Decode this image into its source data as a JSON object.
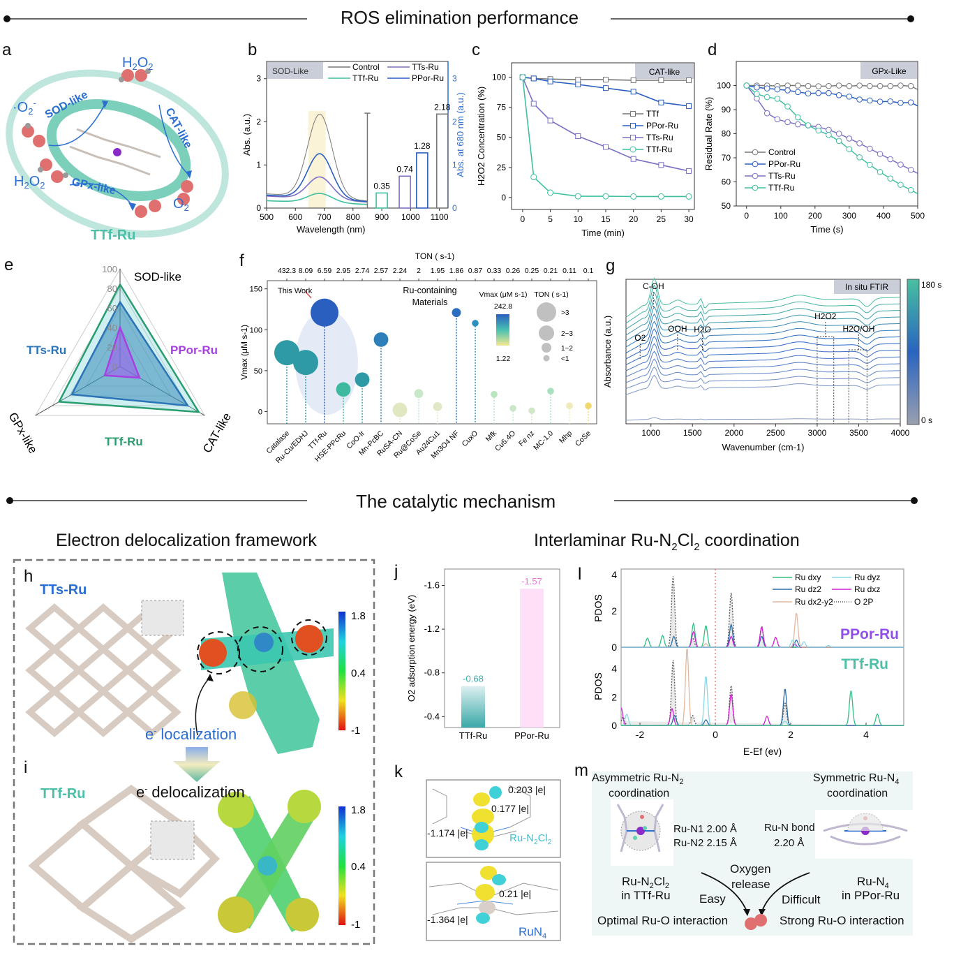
{
  "sections": {
    "top": "ROS elimination performance",
    "bottom": "The catalytic mechanism",
    "left_sub": "Electron delocalization framework",
    "right_sub": "Interlaminar Ru-N2Cl2 coordination"
  },
  "panel_a": {
    "letter": "a",
    "labels": {
      "h2o2_top": "H2O2",
      "o2_radical": "·O2-",
      "h2o2_left": "H2O2",
      "o2": "O2",
      "sod": "SOD-like",
      "cat": "CAT-like",
      "gpx": "GPx-like",
      "name": "TTf-Ru"
    }
  },
  "chart_data": [
    {
      "id": "b",
      "type": "line",
      "title": "SOD-Like",
      "xlabel": "Wavelength (nm)",
      "ylabel": "Abs. (a.u.)",
      "ylabel_right": "Abs. at 680 nm (a.u.)",
      "xlim": [
        500,
        1130
      ],
      "ylim": [
        0,
        3.4
      ],
      "xticks": [
        500,
        600,
        700,
        800,
        900,
        1000,
        1100
      ],
      "yticks": [
        0,
        1,
        2,
        3
      ],
      "series": [
        {
          "name": "Control",
          "color": "#777777",
          "peak": 2.2,
          "base": 0.33
        },
        {
          "name": "TTs-Ru",
          "color": "#7b6fc4",
          "peak": 0.74,
          "base": 0.28
        },
        {
          "name": "TTf-Ru",
          "color": "#3fbf9f",
          "peak": 0.35,
          "base": 0.17
        },
        {
          "name": "PPor-Ru",
          "color": "#2a5fc0",
          "peak": 1.28,
          "base": 0.3
        }
      ],
      "bars": [
        {
          "x": 900,
          "value": 0.35,
          "label": "0.35",
          "color": "#3fbf9f"
        },
        {
          "x": 980,
          "value": 0.74,
          "label": "0.74",
          "color": "#7b6fc4"
        },
        {
          "x": 1040,
          "value": 1.28,
          "label": "1.28",
          "color": "#2a5fc0"
        },
        {
          "x": 1110,
          "value": 2.18,
          "label": "2.18",
          "color": "#777777"
        }
      ]
    },
    {
      "id": "c",
      "type": "line",
      "title": "CAT-like",
      "xlabel": "Time (min)",
      "ylabel": "H2O2 Concentration (%)",
      "xlim": [
        -2,
        31
      ],
      "ylim": [
        -10,
        112
      ],
      "xticks": [
        0,
        5,
        10,
        15,
        20,
        25,
        30
      ],
      "yticks": [
        0,
        25,
        50,
        75,
        100
      ],
      "x": [
        0,
        2,
        5,
        10,
        15,
        20,
        25,
        30
      ],
      "series": [
        {
          "name": "TTf",
          "color": "#777777",
          "marker": "square",
          "values": [
            100,
            99,
            98.5,
            98,
            98,
            97.5,
            97.5,
            97.5
          ]
        },
        {
          "name": "PPor-Ru",
          "color": "#2a5fc0",
          "marker": "square",
          "values": [
            100,
            99,
            96.5,
            94,
            91,
            88,
            79,
            76
          ]
        },
        {
          "name": "TTs-Ru",
          "color": "#7b6fc4",
          "marker": "square",
          "values": [
            100,
            78,
            64,
            51,
            42,
            32,
            27,
            22
          ]
        },
        {
          "name": "TTf-Ru",
          "color": "#3fbf9f",
          "marker": "circle",
          "values": [
            100,
            17,
            4,
            1,
            1,
            0.8,
            0.8,
            0.8
          ]
        }
      ]
    },
    {
      "id": "d",
      "type": "line",
      "title": "GPx-Like",
      "xlabel": "Time (s)",
      "ylabel": "Residual Rate (%)",
      "xlim": [
        -30,
        500
      ],
      "ylim": [
        50,
        110
      ],
      "xticks": [
        0,
        100,
        200,
        300,
        400,
        500
      ],
      "yticks": [
        50,
        60,
        70,
        80,
        90,
        100
      ],
      "x": [
        0,
        30,
        60,
        90,
        120,
        150,
        180,
        210,
        240,
        270,
        300,
        330,
        360,
        390,
        420,
        450,
        480
      ],
      "series": [
        {
          "name": "Control",
          "color": "#777777",
          "values": [
            100,
            100,
            100,
            99.8,
            100,
            100,
            99.8,
            99.7,
            99.8,
            100,
            99.8,
            100,
            99.8,
            99.8,
            99.8,
            100,
            99.8
          ]
        },
        {
          "name": "PPor-Ru",
          "color": "#2a5fc0",
          "values": [
            100,
            99.2,
            98.8,
            98.4,
            98,
            97.3,
            96.7,
            96.9,
            96.9,
            96,
            95.4,
            94.2,
            93.8,
            93.3,
            93.4,
            92.8,
            93
          ]
        },
        {
          "name": "TTs-Ru",
          "color": "#7b6fc4",
          "values": [
            100,
            94.6,
            88.5,
            86,
            84.8,
            83.9,
            83.4,
            82.8,
            81.6,
            80,
            78,
            76,
            73.8,
            71.6,
            69.4,
            67.2,
            65
          ]
        },
        {
          "name": "TTf-Ru",
          "color": "#3fbf9f",
          "values": [
            100,
            96.5,
            95.2,
            94.5,
            91.3,
            86.8,
            83.5,
            81.3,
            79.5,
            77,
            73.6,
            70.2,
            67.1,
            64.1,
            61.4,
            58.8,
            56.6
          ]
        }
      ]
    },
    {
      "id": "e",
      "type": "radar",
      "axes": [
        "SOD-like",
        "CAT-like",
        "GPx-like"
      ],
      "ticks": [
        "0",
        "20",
        "40",
        "60",
        "80",
        "100"
      ],
      "series": [
        {
          "name": "TTf-Ru",
          "color": "#2a9d6f",
          "values": [
            84,
            93,
            72
          ]
        },
        {
          "name": "TTs-Ru",
          "color": "#2a74b8",
          "values": [
            66,
            80,
            57
          ]
        },
        {
          "name": "PPor-Ru",
          "color": "#a740e0",
          "values": [
            40,
            23,
            18
          ]
        }
      ]
    },
    {
      "id": "f",
      "type": "scatter",
      "xlabel_top": "TON ( s-1)",
      "ylabel": "Vmax (μM s-1)",
      "ylim": [
        -15,
        160
      ],
      "yticks": [
        0,
        50,
        100,
        150
      ],
      "annotations": [
        "This Work",
        "Ru-containing",
        "Materials"
      ],
      "colorbar": {
        "label": "Vmax (μM s-1)",
        "max": "242.8",
        "min": "1.22"
      },
      "size_legend": {
        "title": "TON ( s-1)",
        "items": [
          ">3",
          "2~3",
          "1~2",
          "<1"
        ]
      },
      "categories": [
        "Catalase",
        "Ru-Cu/EDHJ",
        "TTf-Ru",
        "HSE-PPcRu",
        "CoO-Ir",
        "Mn-PcBC",
        "RuSA-CN",
        "Ru@CoSe",
        "Au24Cu1",
        "Mn3O4 NF",
        "CuxO",
        "Mfk",
        "Cu5.4O",
        "Fe nz",
        "MC-1.0",
        "Mhp",
        "CoSe"
      ],
      "ton": [
        "432.3",
        "8.09",
        "6.59",
        "2.95",
        "2.74",
        "2.57",
        "2.24",
        "2",
        "1.95",
        "1.86",
        "0.87",
        "0.33",
        "0.26",
        "0.25",
        "0.21",
        "0.11",
        "0.1"
      ],
      "values": [
        72,
        60,
        121,
        27,
        39,
        88,
        2,
        22,
        6,
        121,
        108,
        21,
        4,
        1,
        25,
        7,
        7
      ],
      "sizes": [
        4,
        4,
        4,
        3,
        3,
        3,
        3,
        2,
        2,
        2,
        1,
        1,
        1,
        1,
        1,
        1,
        1
      ],
      "colors": [
        "#2e9aa6",
        "#2e9aa6",
        "#2a5fc0",
        "#3fb8a0",
        "#2e9aa6",
        "#2c7fb8",
        "#dfe8c0",
        "#c8e8c8",
        "#e0e8c8",
        "#2c6fc0",
        "#2c8fc0",
        "#b8e4c0",
        "#c8e8c8",
        "#d0e8c8",
        "#a8e0c0",
        "#f0eab8",
        "#f0d870"
      ]
    },
    {
      "id": "g",
      "type": "line",
      "title": "In situ FTIR",
      "xlabel": "Wavenumber (cm-1)",
      "ylabel": "Absorbance (a.u.)",
      "xlim": [
        700,
        4000
      ],
      "xticks": [
        1000,
        1500,
        2000,
        2500,
        3000,
        3500,
        4000
      ],
      "annotations": [
        "O2",
        "C-OH",
        "OOH",
        "H2O",
        "H2O2",
        "H2O/OH"
      ],
      "colorbar": {
        "max": "180 s",
        "min": "0 s"
      },
      "n_series": 15
    },
    {
      "id": "j",
      "type": "bar",
      "ylabel": "O2 adsorption energy (eV)",
      "categories": [
        "TTf-Ru",
        "PPor-Ru"
      ],
      "values": [
        -0.68,
        -1.57
      ],
      "labels": [
        "-0.68",
        "-1.57"
      ],
      "colors": [
        "#3aa8a8",
        "#f070e0"
      ],
      "yticks": [
        "-0.4",
        "-0.8",
        "-1.2",
        "-1.6"
      ],
      "ylim": [
        -0.3,
        -1.75
      ]
    },
    {
      "id": "l",
      "type": "area",
      "xlabel": "E-Ef (ev)",
      "ylabel": "PDOS",
      "xlim": [
        -2.5,
        5
      ],
      "xticks": [
        -2,
        0,
        2,
        4
      ],
      "panels": [
        {
          "name": "PPor-Ru",
          "yticks": [
            0,
            2,
            4
          ],
          "ymax": 4.3
        },
        {
          "name": "TTf-Ru",
          "yticks": [
            0,
            2,
            4
          ],
          "ymax": 5.5
        }
      ],
      "legend": [
        "Ru dxy",
        "Ru dyz",
        "Ru dz2",
        "Ru dxz",
        "Ru dx2-y2",
        "O 2P"
      ]
    }
  ],
  "panel_h": {
    "letter": "h",
    "name": "TTs-Ru",
    "colorbar_max": "1.8",
    "colorbar_mid": "0.4",
    "colorbar_min": "-1",
    "caption": "e- localization"
  },
  "panel_i": {
    "letter": "i",
    "name": "TTf-Ru",
    "colorbar_max": "1.8",
    "colorbar_mid": "0.4",
    "colorbar_min": "-1",
    "caption": "e- delocalization"
  },
  "panel_k": {
    "letter": "k",
    "top": {
      "v1": "0.203 |e|",
      "v2": "0.177 |e|",
      "v3": "-1.174 |e|",
      "label": "Ru-N2Cl2"
    },
    "bottom": {
      "v1": "0.21 |e|",
      "v2": "-1.364 |e|",
      "label": "RuN4"
    }
  },
  "panel_m": {
    "letter": "m",
    "left_title_1": "Asymmetric Ru-N2",
    "left_title_2": "coordination",
    "right_title_1": "Symmetric Ru-N4",
    "right_title_2": "coordination",
    "bond_left_1": "Ru-N1 2.00 Å",
    "bond_left_2": "Ru-N2 2.15 Å",
    "bond_right_1": "Ru-N bond",
    "bond_right_2": "2.20 Å",
    "site_left_1": "Ru-N2Cl2",
    "site_left_2": "in TTf-Ru",
    "site_right_1": "Ru-N4",
    "site_right_2": "in PPor-Ru",
    "center_1": "Oxygen",
    "center_2": "release",
    "easy": "Easy",
    "difficult": "Difficult",
    "optimal": "Optimal Ru-O interaction",
    "strong": "Strong Ru-O interaction"
  },
  "panel_letters": {
    "b": "b",
    "c": "c",
    "d": "d",
    "e": "e",
    "f": "f",
    "g": "g",
    "j": "j",
    "l": "l"
  }
}
